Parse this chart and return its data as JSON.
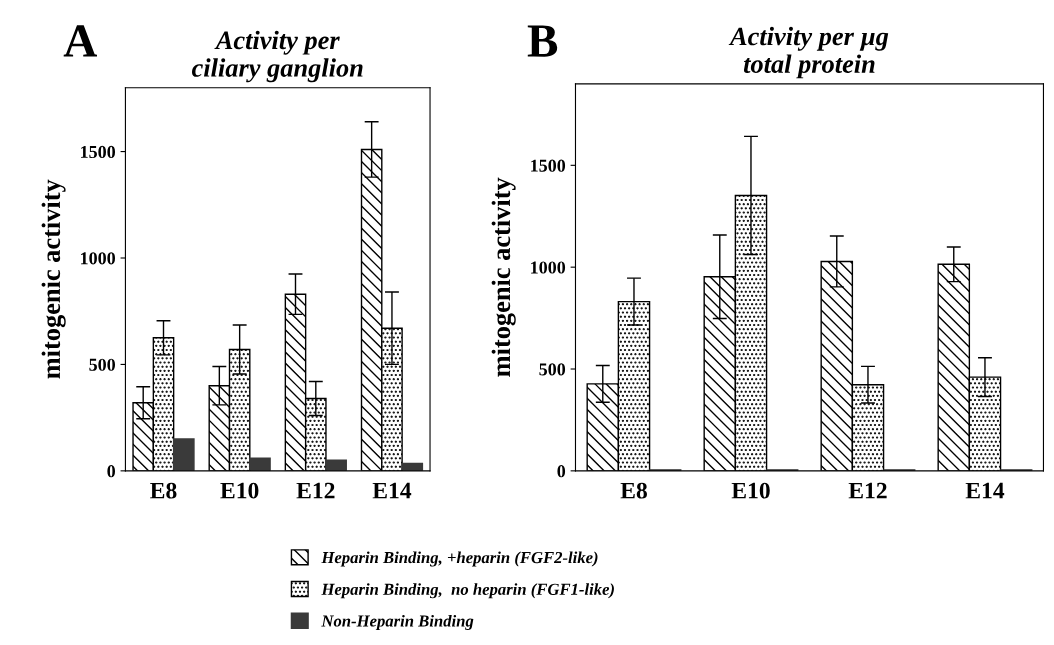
{
  "chart_data": [
    {
      "type": "bar",
      "title": "Activity per\nciliary ganglion",
      "ylabel": "mitogenic activity",
      "annotations": [
        "A"
      ],
      "categories": [
        "E8",
        "E10",
        "E12",
        "E14"
      ],
      "ylim": [
        0,
        1800
      ],
      "yticks": [
        0,
        500,
        1000,
        1500
      ],
      "grid": false,
      "legend": "bottom",
      "series": [
        {
          "name": "Heparin Binding, +heparin (FGF2-like)",
          "color": "#000000",
          "values": [
            320,
            400,
            830,
            1510
          ],
          "errors": [
            75,
            90,
            95,
            130
          ]
        },
        {
          "name": "Heparin Binding,  no heparin (FGF1-like)",
          "color": "#000000",
          "values": [
            625,
            570,
            340,
            670
          ],
          "errors": [
            80,
            115,
            80,
            170
          ]
        },
        {
          "name": "Non-Heparin Binding",
          "color": "#3a3a3a",
          "values": [
            150,
            60,
            50,
            35
          ]
        }
      ]
    },
    {
      "type": "bar",
      "title": "Activity per µg\ntotal protein",
      "ylabel": "mitogenic activity",
      "annotations": [
        "B"
      ],
      "categories": [
        "E8",
        "E10",
        "E12",
        "E14"
      ],
      "ylim": [
        0,
        1900
      ],
      "yticks": [
        0,
        500,
        1000,
        1500
      ],
      "grid": false,
      "series": [
        {
          "color": "#000000",
          "values": [
            427,
            953,
            1028,
            1014
          ],
          "errors": [
            90,
            205,
            125,
            85
          ]
        },
        {
          "color": "#000000",
          "values": [
            831,
            1352,
            423,
            460
          ],
          "errors": [
            115,
            290,
            90,
            95
          ]
        },
        {
          "color": "#3a3a3a",
          "values": [
            5,
            5,
            5,
            5
          ]
        }
      ]
    }
  ]
}
